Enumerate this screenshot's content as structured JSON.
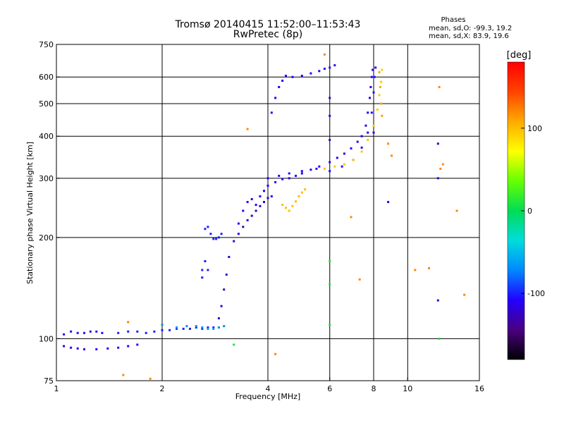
{
  "chart_data": {
    "type": "scatter",
    "title": "Tromsø 20140415 11:52:00–11:53:43",
    "subtitle": "RwPretec (8p)",
    "xlabel": "Frequency [MHz]",
    "ylabel": "Stationary phase Virtual Height [km]",
    "x_scale": "log",
    "y_scale": "log",
    "xlim": [
      1,
      16
    ],
    "ylim": [
      75,
      750
    ],
    "x_ticks": [
      1,
      2,
      4,
      6,
      8,
      10,
      16
    ],
    "x_tick_labels": [
      "1",
      "2",
      "4",
      "6",
      "8",
      "10",
      "16"
    ],
    "y_ticks": [
      75,
      100,
      200,
      300,
      400,
      500,
      600,
      750
    ],
    "y_tick_labels": [
      "75",
      "100",
      "200",
      "300",
      "400",
      "500",
      "600",
      "750"
    ],
    "x_gridlines": [
      2,
      4,
      6,
      8,
      10
    ],
    "y_gridlines": [
      100,
      200,
      300,
      400,
      500,
      600
    ],
    "grid": true,
    "phases_box": {
      "heading": "Phases",
      "line_o": "mean, sd,O: -99.3, 19.2",
      "line_x": "mean, sd,X:  83.9, 19.6"
    },
    "colorbar": {
      "unit": "[deg]",
      "range": [
        -180,
        180
      ],
      "ticks": [
        100,
        0,
        -100
      ],
      "tick_labels": [
        "100",
        "0",
        "-100"
      ],
      "colors": [
        "#000000",
        "#4a0080",
        "#2200ff",
        "#0088ff",
        "#00dddd",
        "#00dd55",
        "#66ff00",
        "#ffff00",
        "#ffaa00",
        "#ff4400",
        "#ff0000"
      ]
    },
    "series": [
      {
        "phase": -105,
        "points": [
          [
            1.05,
            103
          ],
          [
            1.1,
            105
          ],
          [
            1.15,
            104
          ],
          [
            1.2,
            104
          ],
          [
            1.25,
            105
          ],
          [
            1.3,
            105
          ],
          [
            1.35,
            104
          ]
        ]
      },
      {
        "phase": -110,
        "points": [
          [
            1.05,
            95
          ],
          [
            1.1,
            94
          ],
          [
            1.15,
            93.5
          ],
          [
            1.2,
            93
          ],
          [
            1.3,
            93
          ],
          [
            1.4,
            93.5
          ],
          [
            1.5,
            94
          ],
          [
            1.6,
            95
          ],
          [
            1.7,
            96
          ]
        ]
      },
      {
        "phase": -100,
        "points": [
          [
            1.5,
            104
          ],
          [
            1.6,
            105
          ],
          [
            1.7,
            105
          ],
          [
            1.8,
            104
          ],
          [
            1.9,
            105
          ],
          [
            2.0,
            106
          ],
          [
            2.1,
            106
          ],
          [
            2.2,
            107
          ],
          [
            2.3,
            107
          ],
          [
            2.4,
            107
          ],
          [
            2.5,
            108
          ],
          [
            2.6,
            107
          ],
          [
            2.7,
            108
          ],
          [
            2.8,
            108
          ],
          [
            2.9,
            108
          ]
        ]
      },
      {
        "phase": -70,
        "points": [
          [
            2.0,
            110
          ],
          [
            2.2,
            108
          ],
          [
            2.35,
            109
          ],
          [
            2.5,
            109
          ],
          [
            2.6,
            108
          ],
          [
            2.7,
            107
          ],
          [
            2.8,
            107
          ],
          [
            2.9,
            108
          ],
          [
            3.0,
            109
          ]
        ]
      },
      {
        "phase": -100,
        "points": [
          [
            2.6,
            152
          ],
          [
            2.6,
            160
          ],
          [
            2.65,
            170
          ],
          [
            2.7,
            160
          ],
          [
            2.65,
            212
          ],
          [
            2.7,
            215
          ],
          [
            2.75,
            205
          ],
          [
            2.8,
            198
          ],
          [
            2.85,
            198
          ],
          [
            2.9,
            200
          ],
          [
            2.95,
            205
          ]
        ]
      },
      {
        "phase": -120,
        "points": [
          [
            2.9,
            115
          ],
          [
            2.95,
            125
          ],
          [
            3.0,
            140
          ],
          [
            3.05,
            155
          ],
          [
            3.1,
            175
          ],
          [
            3.2,
            195
          ],
          [
            3.3,
            205
          ],
          [
            3.4,
            215
          ],
          [
            3.5,
            225
          ],
          [
            3.6,
            232
          ],
          [
            3.7,
            240
          ],
          [
            3.8,
            248
          ],
          [
            3.9,
            255
          ],
          [
            4.0,
            262
          ],
          [
            4.1,
            265
          ]
        ]
      },
      {
        "phase": -110,
        "points": [
          [
            3.3,
            220
          ],
          [
            3.4,
            240
          ],
          [
            3.5,
            255
          ],
          [
            3.6,
            260
          ],
          [
            3.7,
            250
          ],
          [
            3.8,
            265
          ],
          [
            3.9,
            275
          ],
          [
            4.0,
            285
          ],
          [
            4.2,
            292
          ],
          [
            4.4,
            298
          ],
          [
            4.6,
            300
          ],
          [
            4.8,
            305
          ],
          [
            5.0,
            310
          ],
          [
            5.3,
            318
          ],
          [
            5.6,
            325
          ],
          [
            6.0,
            335
          ],
          [
            6.3,
            345
          ],
          [
            6.6,
            355
          ],
          [
            6.9,
            368
          ],
          [
            7.2,
            385
          ],
          [
            7.4,
            400
          ],
          [
            7.6,
            430
          ],
          [
            7.7,
            470
          ],
          [
            7.8,
            520
          ],
          [
            7.85,
            560
          ],
          [
            7.9,
            600
          ],
          [
            7.95,
            630
          ]
        ]
      },
      {
        "phase": -105,
        "points": [
          [
            4.0,
            300
          ],
          [
            4.3,
            305
          ],
          [
            4.6,
            310
          ],
          [
            5.0,
            315
          ],
          [
            5.5,
            320
          ],
          [
            6.0,
            315
          ],
          [
            6.5,
            325
          ],
          [
            7.0,
            340
          ],
          [
            7.4,
            370
          ],
          [
            7.7,
            410
          ],
          [
            7.9,
            470
          ],
          [
            8.0,
            540
          ],
          [
            8.05,
            600
          ],
          [
            8.1,
            640
          ]
        ]
      },
      {
        "phase": -110,
        "points": [
          [
            4.1,
            470
          ],
          [
            4.2,
            520
          ],
          [
            4.3,
            560
          ],
          [
            4.4,
            585
          ],
          [
            4.5,
            605
          ],
          [
            4.7,
            600
          ],
          [
            5.0,
            605
          ],
          [
            5.3,
            615
          ],
          [
            5.6,
            625
          ],
          [
            5.8,
            635
          ],
          [
            6.0,
            640
          ],
          [
            6.2,
            650
          ]
        ]
      },
      {
        "phase": 100,
        "points": [
          [
            4.4,
            250
          ],
          [
            4.5,
            245
          ],
          [
            4.6,
            240
          ],
          [
            4.7,
            248
          ],
          [
            4.8,
            256
          ],
          [
            4.9,
            265
          ],
          [
            5.0,
            272
          ],
          [
            5.1,
            278
          ]
        ]
      },
      {
        "phase": 95,
        "points": [
          [
            5.8,
            320
          ],
          [
            6.2,
            325
          ],
          [
            6.6,
            330
          ],
          [
            7.0,
            340
          ],
          [
            7.4,
            360
          ],
          [
            7.7,
            390
          ],
          [
            8.0,
            430
          ],
          [
            8.2,
            480
          ],
          [
            8.3,
            530
          ],
          [
            8.4,
            580
          ],
          [
            8.45,
            630
          ]
        ]
      },
      {
        "phase": 110,
        "points": [
          [
            8.3,
            620
          ],
          [
            8.35,
            560
          ],
          [
            8.4,
            500
          ],
          [
            8.45,
            460
          ]
        ]
      },
      {
        "phase": 120,
        "points": [
          [
            4.2,
            90
          ],
          [
            5.8,
            700
          ],
          [
            8.8,
            380
          ],
          [
            9.0,
            350
          ],
          [
            12.3,
            560
          ],
          [
            12.4,
            320
          ],
          [
            12.6,
            330
          ],
          [
            13.8,
            240
          ],
          [
            14.5,
            135
          ],
          [
            10.5,
            160
          ],
          [
            11.5,
            162
          ],
          [
            6.9,
            230
          ],
          [
            7.3,
            150
          ],
          [
            3.5,
            420
          ],
          [
            1.85,
            76
          ],
          [
            1.6,
            112
          ],
          [
            1.55,
            78
          ]
        ]
      },
      {
        "phase": 10,
        "points": [
          [
            3.2,
            96
          ],
          [
            6.0,
            170
          ],
          [
            6.0,
            145
          ],
          [
            6.0,
            110
          ],
          [
            12.3,
            100
          ]
        ]
      },
      {
        "phase": -120,
        "points": [
          [
            6.0,
            520
          ],
          [
            6.0,
            460
          ],
          [
            6.0,
            390
          ],
          [
            8.0,
            410
          ],
          [
            8.8,
            255
          ],
          [
            12.2,
            380
          ],
          [
            12.2,
            300
          ],
          [
            12.2,
            130
          ]
        ]
      }
    ]
  }
}
